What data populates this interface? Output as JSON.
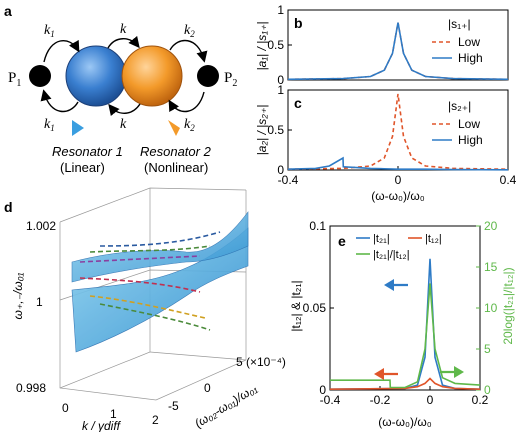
{
  "panel_a": {
    "letter": "a",
    "port1": "P",
    "port1_sub": "1",
    "port2": "P",
    "port2_sub": "2",
    "coupling_k": "k",
    "k1": "k",
    "k1_sub": "1",
    "k2": "k",
    "k2_sub": "2",
    "res1_name": "Resonator 1",
    "res1_type": "(Linear)",
    "res2_name": "Resonator 2",
    "res2_type": "(Nonlinear)",
    "colors": {
      "res1": "#3a7fd0",
      "res2": "#f39a2a"
    }
  },
  "panel_b": {
    "letter": "b",
    "ylabel": "|a₁| / |s₁₊|",
    "legend_title": "|s₁₊|",
    "legend": [
      "Low",
      "High"
    ]
  },
  "panel_c": {
    "letter": "c",
    "ylabel": "|a₂| / |s₂₊|",
    "legend_title": "|s₂₊|",
    "legend": [
      "Low",
      "High"
    ]
  },
  "panel_d": {
    "letter": "d",
    "zlabel": "ω₊,₋/ω₀₁",
    "xlabel": "k / γdiff",
    "ylabel": "(ω₀₂-ω₀₁)/ω₀₁",
    "zticks": [
      "1.002",
      "1",
      "0.998"
    ],
    "xticks": [
      "0",
      "1",
      "2"
    ],
    "yticks": [
      "-5",
      "0",
      "5 (×10⁻⁴)"
    ]
  },
  "panel_e": {
    "letter": "e",
    "ylabel_left": "|t₁₂| & |t₂₁|",
    "ylabel_right": "20log(|t₂₁|/|t₁₂|)",
    "legend": [
      "|t₂₁|",
      "|t₁₂|",
      "|t₂₁|/|t₁₂|"
    ],
    "yticks_left": [
      "0",
      "0.05",
      "0.1"
    ],
    "yticks_right": [
      "0",
      "5",
      "10",
      "15",
      "20"
    ]
  },
  "shared_xlabel": "(ω-ω₀)/ω₀",
  "chart_data": [
    {
      "panel": "b",
      "type": "line",
      "xlim": [
        -0.4,
        0.4
      ],
      "ylim": [
        0,
        1
      ],
      "yticks": [
        0,
        0.5,
        1
      ],
      "xticks": [],
      "legend_title": "|s₁₊|",
      "series": [
        {
          "name": "Low",
          "color": "#e0552a",
          "dashed": true,
          "x": [
            -0.4,
            -0.2,
            -0.1,
            -0.05,
            -0.02,
            0,
            0.02,
            0.05,
            0.1,
            0.2,
            0.4
          ],
          "y": [
            0.01,
            0.02,
            0.05,
            0.14,
            0.38,
            0.82,
            0.38,
            0.14,
            0.05,
            0.02,
            0.01
          ]
        },
        {
          "name": "High",
          "color": "#2e7bc6",
          "dashed": false,
          "x": [
            -0.4,
            -0.2,
            -0.1,
            -0.05,
            -0.02,
            0,
            0.02,
            0.05,
            0.1,
            0.2,
            0.4
          ],
          "y": [
            0.01,
            0.02,
            0.05,
            0.14,
            0.38,
            0.82,
            0.38,
            0.14,
            0.05,
            0.02,
            0.01
          ]
        }
      ]
    },
    {
      "panel": "c",
      "type": "line",
      "xlim": [
        -0.4,
        0.4
      ],
      "ylim": [
        0,
        1
      ],
      "yticks": [
        0,
        0.5,
        1
      ],
      "xticks": [
        -0.4,
        0,
        0.4
      ],
      "legend_title": "|s₂₊|",
      "series": [
        {
          "name": "Low",
          "color": "#e0552a",
          "dashed": true,
          "x": [
            -0.4,
            -0.2,
            -0.1,
            -0.05,
            -0.02,
            0,
            0.02,
            0.05,
            0.1,
            0.2,
            0.4
          ],
          "y": [
            0.01,
            0.02,
            0.05,
            0.15,
            0.42,
            0.95,
            0.42,
            0.15,
            0.05,
            0.02,
            0.01
          ]
        },
        {
          "name": "High",
          "color": "#2e7bc6",
          "dashed": false,
          "x": [
            -0.4,
            -0.3,
            -0.25,
            -0.2,
            -0.199,
            -0.15,
            -0.1,
            -0.05,
            0,
            0.1,
            0.2,
            0.4
          ],
          "y": [
            0.01,
            0.02,
            0.05,
            0.15,
            0.04,
            0.03,
            0.02,
            0.015,
            0.01,
            0.01,
            0.005,
            0.003
          ]
        }
      ]
    },
    {
      "panel": "d",
      "type": "surface",
      "xlabel": "k / γdiff",
      "ylabel": "(ω₀₂-ω₀₁)/ω₀₁",
      "zlabel": "ω₊,₋/ω₀₁",
      "xlim": [
        0,
        2
      ],
      "ylim": [
        -5,
        5
      ],
      "zlim": [
        0.998,
        1.002
      ]
    },
    {
      "panel": "e",
      "type": "line",
      "xlim": [
        -0.4,
        0.2
      ],
      "ylim_left": [
        0,
        0.1
      ],
      "ylim_right": [
        0,
        20
      ],
      "xticks": [
        -0.4,
        -0.2,
        0,
        0.2
      ],
      "series": [
        {
          "name": "|t₂₁|",
          "color": "#2e7bc6",
          "axis": "left",
          "x": [
            -0.4,
            -0.1,
            -0.05,
            -0.02,
            0,
            0.02,
            0.05,
            0.1,
            0.2
          ],
          "y": [
            0.0005,
            0.001,
            0.003,
            0.02,
            0.08,
            0.02,
            0.003,
            0.001,
            0.0005
          ]
        },
        {
          "name": "|t₁₂|",
          "color": "#e0552a",
          "axis": "left",
          "x": [
            -0.4,
            -0.1,
            -0.05,
            -0.02,
            0,
            0.02,
            0.05,
            0.1,
            0.2
          ],
          "y": [
            0.0005,
            0.001,
            0.002,
            0.004,
            0.007,
            0.004,
            0.002,
            0.001,
            0.0005
          ]
        },
        {
          "name": "|t₂₁|/|t₁₂|",
          "color": "#5fb84a",
          "axis": "right",
          "x": [
            -0.4,
            -0.16,
            -0.159,
            -0.1,
            -0.05,
            -0.02,
            0,
            0.02,
            0.05,
            0.1,
            0.2
          ],
          "y": [
            1.2,
            1.2,
            0.3,
            0.3,
            1.0,
            5.0,
            13.0,
            5.0,
            1.5,
            0.8,
            0.6
          ]
        }
      ]
    }
  ]
}
